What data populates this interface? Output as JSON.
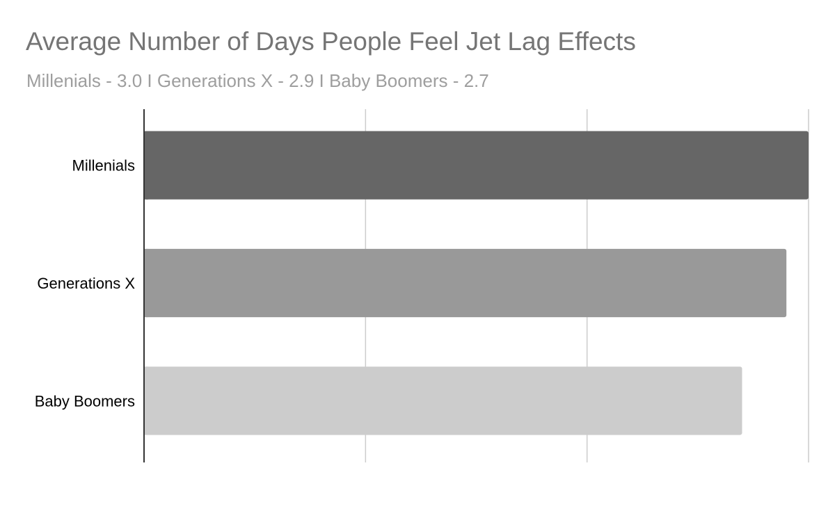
{
  "chart_data": {
    "type": "bar",
    "orientation": "horizontal",
    "title": "Average Number of Days People Feel Jet Lag Effects",
    "subtitle": "Millenials - 3.0 I Generations X - 2.9 I Baby Boomers - 2.7",
    "categories": [
      "Millenials",
      "Generations X",
      "Baby Boomers"
    ],
    "values": [
      3.0,
      2.9,
      2.7
    ],
    "colors": [
      "#666666",
      "#999999",
      "#cccccc"
    ],
    "xlim": [
      0,
      3
    ],
    "grid": true,
    "gridlines": [
      0,
      1,
      2,
      3
    ],
    "legend": "none",
    "xlabel": "",
    "ylabel": ""
  }
}
